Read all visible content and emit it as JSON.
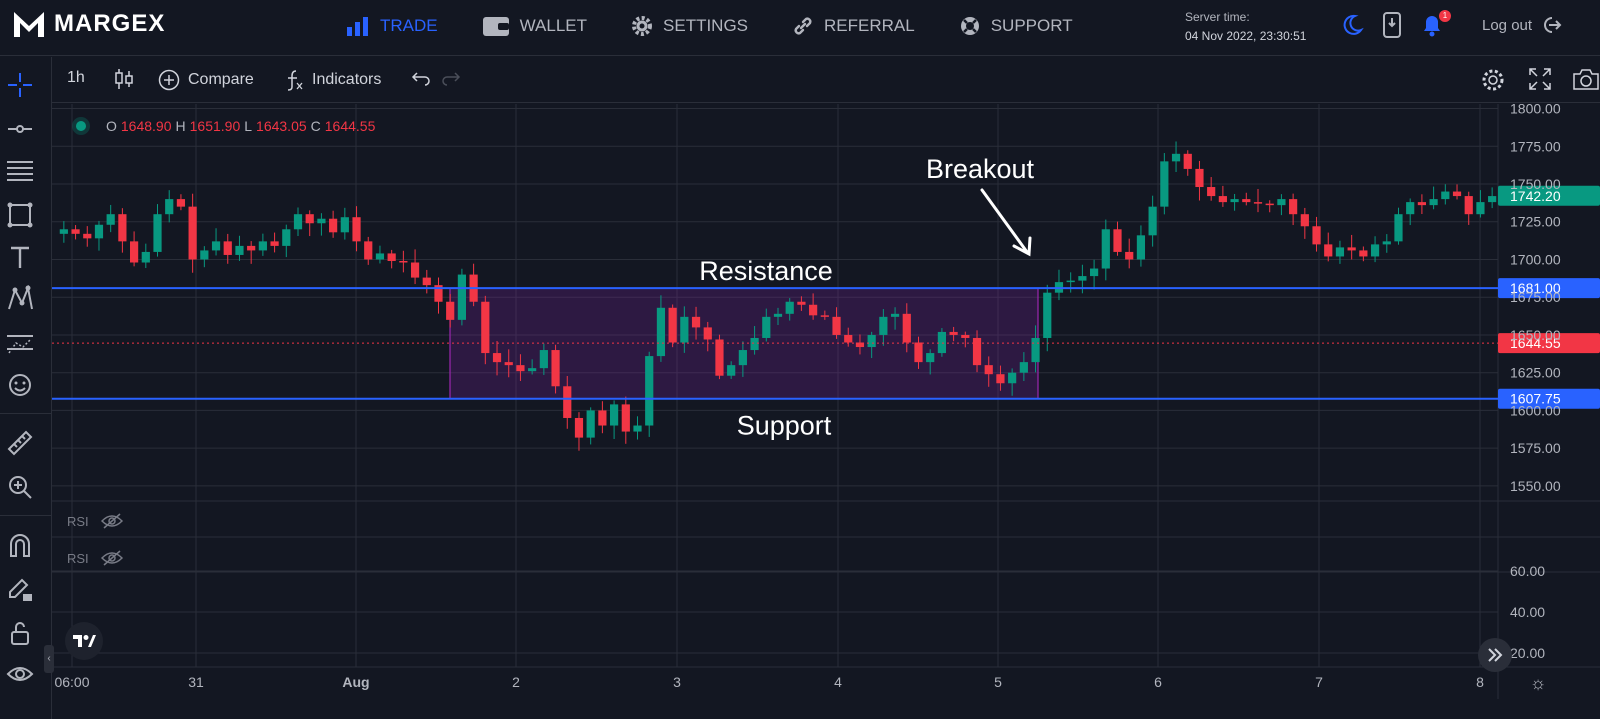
{
  "brand": {
    "name": "MARGEX"
  },
  "nav": [
    {
      "label": "TRADE",
      "icon": "bar-chart-icon",
      "active": true
    },
    {
      "label": "WALLET",
      "icon": "wallet-icon"
    },
    {
      "label": "SETTINGS",
      "icon": "gear-icon"
    },
    {
      "label": "REFERRAL",
      "icon": "link-icon"
    },
    {
      "label": "SUPPORT",
      "icon": "lifebuoy-icon"
    }
  ],
  "server": {
    "label": "Server time:",
    "time": "04 Nov 2022, 23:30:51"
  },
  "notifications": {
    "count": "1"
  },
  "logout_label": "Log out",
  "toolbar": {
    "interval": "1h",
    "compare": "Compare",
    "indicators": "Indicators"
  },
  "ohlc": {
    "o_label": "O",
    "o": "1648.90",
    "h_label": "H",
    "h": "1651.90",
    "l_label": "L",
    "l": "1643.05",
    "c_label": "C",
    "c": "1644.55"
  },
  "indicators": [
    {
      "label": "RSI"
    },
    {
      "label": "RSI"
    }
  ],
  "colors": {
    "background": "#131722",
    "up": "#089981",
    "down": "#f23645",
    "accent": "#2962ff",
    "zone": "#7b1fa2",
    "last_price": "#f23645",
    "high_tag": "#089981"
  },
  "chart_data": {
    "type": "candlestick",
    "x_ticks": [
      "06:00",
      "31",
      "Aug",
      "2",
      "3",
      "4",
      "5",
      "6",
      "7",
      "8"
    ],
    "price_axis": {
      "ticks": [
        "1800.00",
        "1775.00",
        "1750.00",
        "1725.00",
        "1700.00",
        "1675.00",
        "1650.00",
        "1625.00",
        "1600.00",
        "1575.00",
        "1550.00"
      ],
      "range": [
        1540,
        1803
      ]
    },
    "rsi_axis": {
      "ticks": [
        "60.00",
        "40.00",
        "20.00"
      ]
    },
    "price_tags": [
      {
        "value": 1742.2,
        "label": "1742.20",
        "color": "#089981"
      },
      {
        "value": 1681.0,
        "label": "1681.00",
        "color": "#2962ff"
      },
      {
        "value": 1644.55,
        "label": "1644.55",
        "color": "#f23645"
      },
      {
        "value": 1607.75,
        "label": "1607.75",
        "color": "#2962ff"
      }
    ],
    "resistance": {
      "value": 1681.0,
      "label": "Resistance"
    },
    "support": {
      "value": 1607.75,
      "label": "Support"
    },
    "breakout_label": "Breakout",
    "close_path": [
      1720,
      1717,
      1714,
      1723,
      1730,
      1712,
      1698,
      1705,
      1730,
      1740,
      1735,
      1700,
      1706,
      1712,
      1703,
      1709,
      1706,
      1712,
      1709,
      1720,
      1730,
      1724,
      1727,
      1718,
      1728,
      1712,
      1700,
      1704,
      1699,
      1698,
      1688,
      1683,
      1672,
      1660,
      1690,
      1672,
      1638,
      1632,
      1630,
      1626,
      1628,
      1640,
      1616,
      1595,
      1582,
      1600,
      1590,
      1604,
      1586,
      1590,
      1636,
      1668,
      1645,
      1662,
      1655,
      1647,
      1623,
      1630,
      1640,
      1648,
      1662,
      1664,
      1672,
      1670,
      1663,
      1662,
      1650,
      1645,
      1642,
      1650,
      1662,
      1664,
      1645,
      1632,
      1638,
      1652,
      1650,
      1648,
      1630,
      1624,
      1618,
      1625,
      1632,
      1648,
      1678,
      1685,
      1686,
      1689,
      1694,
      1720,
      1705,
      1700,
      1716,
      1735,
      1765,
      1770,
      1760,
      1748,
      1742,
      1738,
      1740,
      1738,
      1737,
      1736,
      1740,
      1730,
      1722,
      1710,
      1702,
      1708,
      1706,
      1702,
      1710,
      1712,
      1730,
      1738,
      1736,
      1740,
      1745,
      1742,
      1730,
      1738,
      1742
    ],
    "purple_zone": {
      "low": 1607.75,
      "high": 1681.0,
      "from": "Aug 1 ~14:00",
      "to": "Aug 5 ~05:00"
    }
  }
}
